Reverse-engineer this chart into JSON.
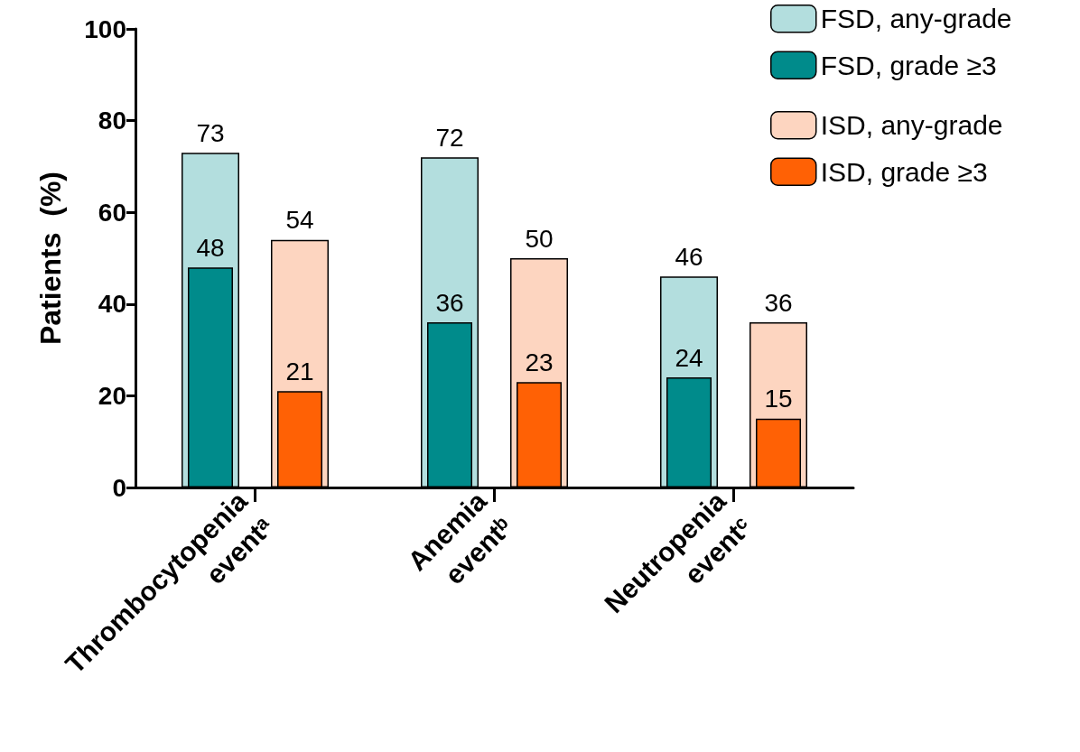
{
  "chart_data": {
    "type": "bar",
    "ylabel": "Patients  (%)",
    "categories": [
      "Thrombocytopenia\neventᵃ",
      "Anemia\neventᵇ",
      "Neutropenia\neventᶜ"
    ],
    "series": [
      {
        "name": "FSD, any-grade",
        "color": "#b3dede",
        "values": [
          73,
          72,
          46
        ]
      },
      {
        "name": "FSD, grade ≥3",
        "color": "#008b8b",
        "values": [
          48,
          36,
          24
        ]
      },
      {
        "name": "ISD, any-grade",
        "color": "#fdd5c0",
        "values": [
          54,
          50,
          36
        ]
      },
      {
        "name": "ISD, grade ≥3",
        "color": "#ff6105",
        "values": [
          21,
          23,
          15
        ]
      }
    ],
    "ylim": [
      0,
      100
    ],
    "yticks": [
      0,
      20,
      40,
      60,
      80,
      100
    ],
    "grid": false,
    "legend": "top right",
    "data_labels": true
  }
}
